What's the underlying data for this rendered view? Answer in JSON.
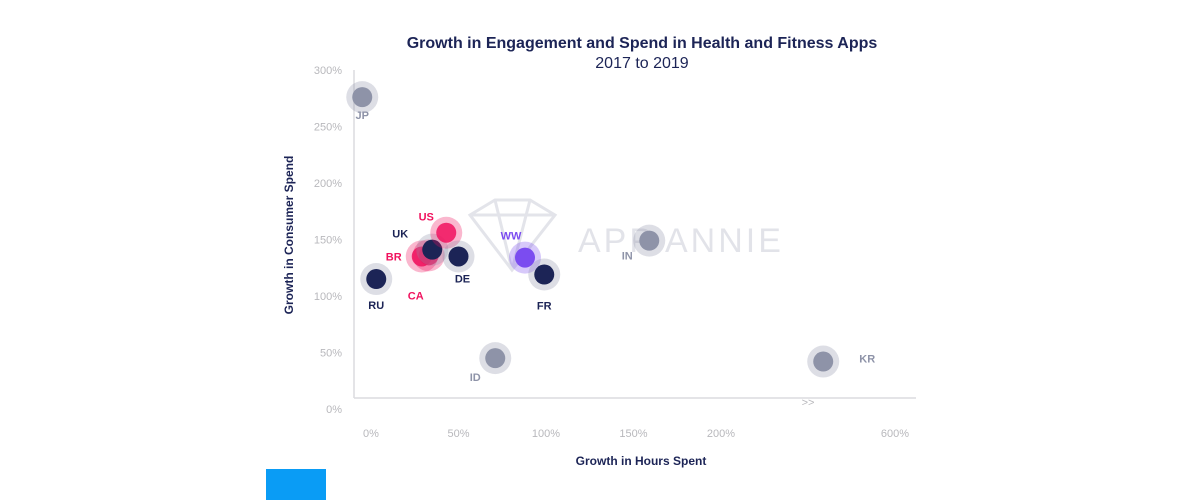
{
  "chart_data": {
    "type": "scatter",
    "title": "Growth in Engagement and Spend in Health and Fitness Apps",
    "subtitle": "2017 to 2019",
    "xlabel": "Growth in Hours Spent",
    "ylabel": "Growth in Consumer Spend",
    "x_ticks": [
      "0%",
      "50%",
      "100%",
      "150%",
      "200%",
      "600%"
    ],
    "y_ticks": [
      "0%",
      "50%",
      "100%",
      "150%",
      "200%",
      "250%",
      "300%"
    ],
    "xlim": [
      -5,
      600
    ],
    "ylim": [
      0,
      300
    ],
    "axis_break": ">>",
    "watermark": "APP ANNIE",
    "grid": false,
    "points": [
      {
        "label": "JP",
        "x": -5,
        "y": 276,
        "group": "gray"
      },
      {
        "label": "RU",
        "x": 3,
        "y": 115,
        "group": "navy"
      },
      {
        "label": "CA",
        "x": 29,
        "y": 135,
        "group": "pink"
      },
      {
        "label": "BR",
        "x": 33,
        "y": 136,
        "group": "pink"
      },
      {
        "label": "UK",
        "x": 35,
        "y": 141,
        "group": "navy"
      },
      {
        "label": "US",
        "x": 43,
        "y": 156,
        "group": "pink"
      },
      {
        "label": "DE",
        "x": 50,
        "y": 135,
        "group": "navy"
      },
      {
        "label": "WW",
        "x": 88,
        "y": 134,
        "group": "purple"
      },
      {
        "label": "FR",
        "x": 99,
        "y": 119,
        "group": "navy"
      },
      {
        "label": "IN",
        "x": 159,
        "y": 149,
        "group": "gray"
      },
      {
        "label": "ID",
        "x": 71,
        "y": 45,
        "group": "gray"
      },
      {
        "label": "KR",
        "x": 435,
        "y": 42,
        "group": "gray"
      }
    ],
    "colors": {
      "navy": "#1c2456",
      "pink": "#f0125e",
      "purple": "#7b4cf0",
      "gray": "#8e93a8"
    }
  }
}
